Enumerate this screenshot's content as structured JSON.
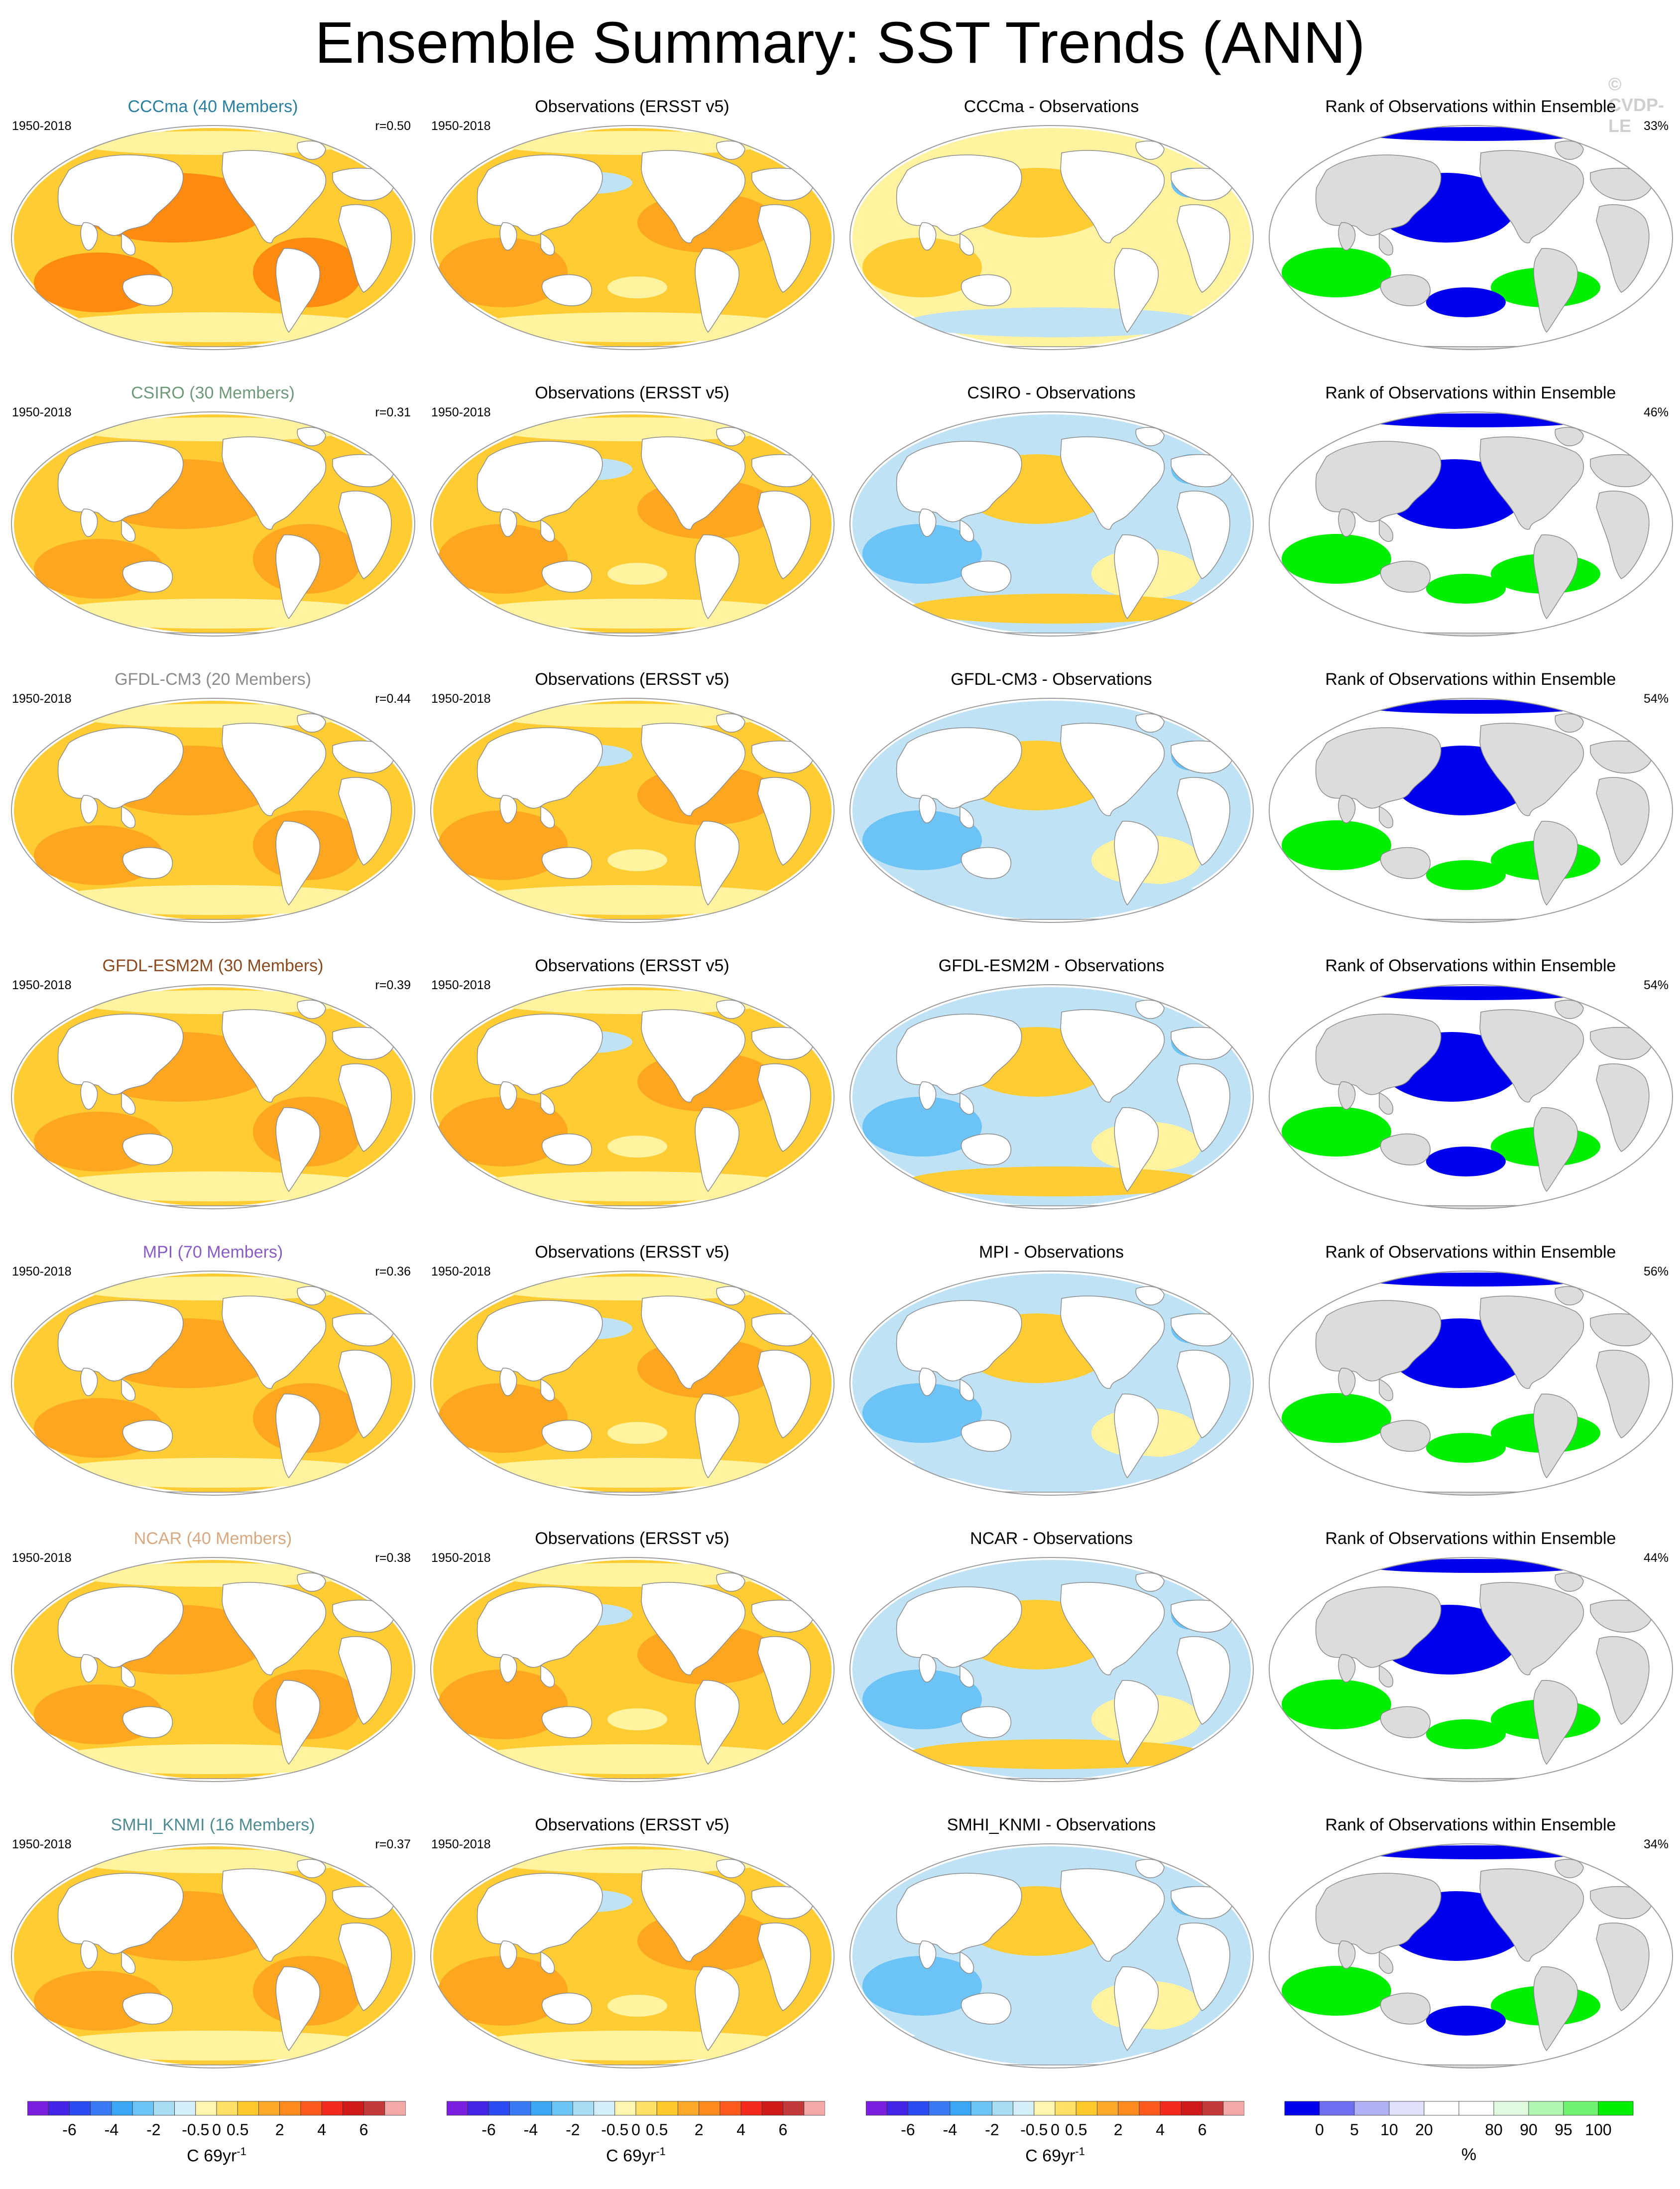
{
  "title": "Ensemble Summary: SST Trends (ANN)",
  "watermark": "© CVDP-LE",
  "period": "1950-2018",
  "obs_title": "Observations (ERSST v5)",
  "rank_title": "Rank of Observations within Ensemble",
  "rows": [
    {
      "model_title": "CCCma (40 Members)",
      "model_color": "#2a7fa0",
      "r": "r=0.50",
      "diff_title": "CCCma - Observations",
      "rank_pct": "33%"
    },
    {
      "model_title": "CSIRO (30 Members)",
      "model_color": "#6f9a7a",
      "r": "r=0.31",
      "diff_title": "CSIRO - Observations",
      "rank_pct": "46%"
    },
    {
      "model_title": "GFDL-CM3 (20 Members)",
      "model_color": "#8c8c8c",
      "r": "r=0.44",
      "diff_title": "GFDL-CM3 - Observations",
      "rank_pct": "54%"
    },
    {
      "model_title": "GFDL-ESM2M (30 Members)",
      "model_color": "#8a4a1e",
      "r": "r=0.39",
      "diff_title": "GFDL-ESM2M - Observations",
      "rank_pct": "54%"
    },
    {
      "model_title": "MPI (70 Members)",
      "model_color": "#8a5cc8",
      "r": "r=0.36",
      "diff_title": "MPI - Observations",
      "rank_pct": "56%"
    },
    {
      "model_title": "NCAR (40 Members)",
      "model_color": "#d8a880",
      "r": "r=0.38",
      "diff_title": "NCAR - Observations",
      "rank_pct": "44%"
    },
    {
      "model_title": "SMHI_KNMI (16 Members)",
      "model_color": "#4e8c92",
      "r": "r=0.37",
      "diff_title": "SMHI_KNMI - Observations",
      "rank_pct": "34%"
    }
  ],
  "trend_colorbar": {
    "unit": "C 69yr",
    "unit_sup": "-1",
    "ticks": [
      "-6",
      "-4",
      "-2",
      "-0.5",
      "0",
      "0.5",
      "2",
      "4",
      "6"
    ],
    "colors": [
      "#7b1fe0",
      "#4424e6",
      "#2b4cf5",
      "#3a7af5",
      "#3aa6f5",
      "#6cc3f5",
      "#a8dcf2",
      "#d3eef8",
      "#fff7b0",
      "#ffe066",
      "#ffc92b",
      "#ffa92b",
      "#ff8a1e",
      "#ff5a1e",
      "#f52a1e",
      "#d01a1a",
      "#c43a3a",
      "#f5a8a8"
    ]
  },
  "rank_colorbar": {
    "unit": "%",
    "ticks": [
      "0",
      "5",
      "10",
      "20",
      "80",
      "90",
      "95",
      "100"
    ],
    "colors": [
      "#0000ee",
      "#6f6ff2",
      "#b0b0f5",
      "#e0e0fa",
      "#ffffff",
      "#ffffff",
      "#e0fae0",
      "#b0f5b0",
      "#6ff26f",
      "#00ee00"
    ]
  },
  "palette": {
    "ocean_warm": "#ffcc33",
    "ocean_hot": "#ffa620",
    "ocean_hotter": "#ff8a10",
    "neutral_yellow": "#fff3a0",
    "cool_light": "#bfe2f5",
    "cool_mid": "#6cc3f5",
    "land": "#ffffff",
    "land_gray": "#dcdcdc",
    "rank_low": "#0000ee",
    "rank_high": "#00ee00"
  }
}
